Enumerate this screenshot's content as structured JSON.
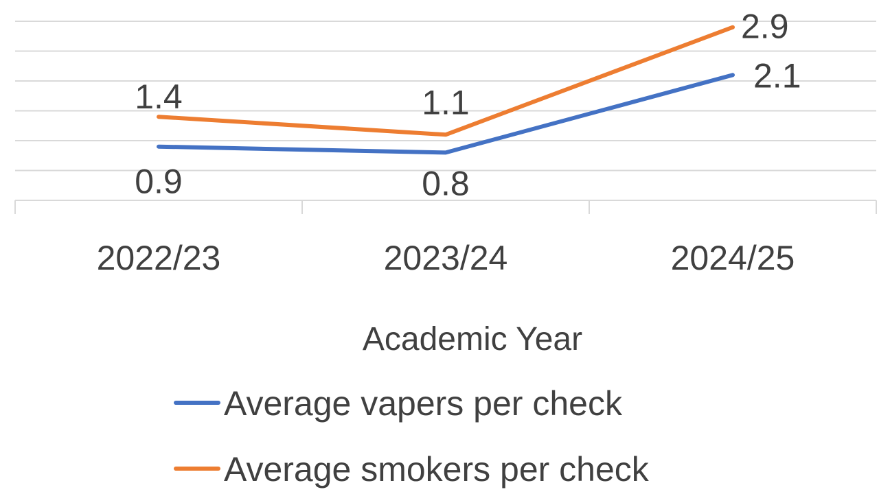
{
  "chart_data": {
    "type": "line",
    "categories": [
      "2022/23",
      "2023/24",
      "2024/25"
    ],
    "series": [
      {
        "name": "Average vapers per check",
        "values": [
          0.9,
          0.8,
          2.1
        ],
        "color": "#4472C4"
      },
      {
        "name": "Average smokers per check",
        "values": [
          1.4,
          1.1,
          2.9
        ],
        "color": "#ED7D31"
      }
    ],
    "data_labels": [
      [
        "0.9",
        "0.8",
        "2.1"
      ],
      [
        "1.4",
        "1.1",
        "2.9"
      ]
    ],
    "xlabel": "Academic Year",
    "ylabel": "",
    "ylim": [
      0,
      3
    ],
    "grid": true,
    "legend_position": "bottom"
  }
}
